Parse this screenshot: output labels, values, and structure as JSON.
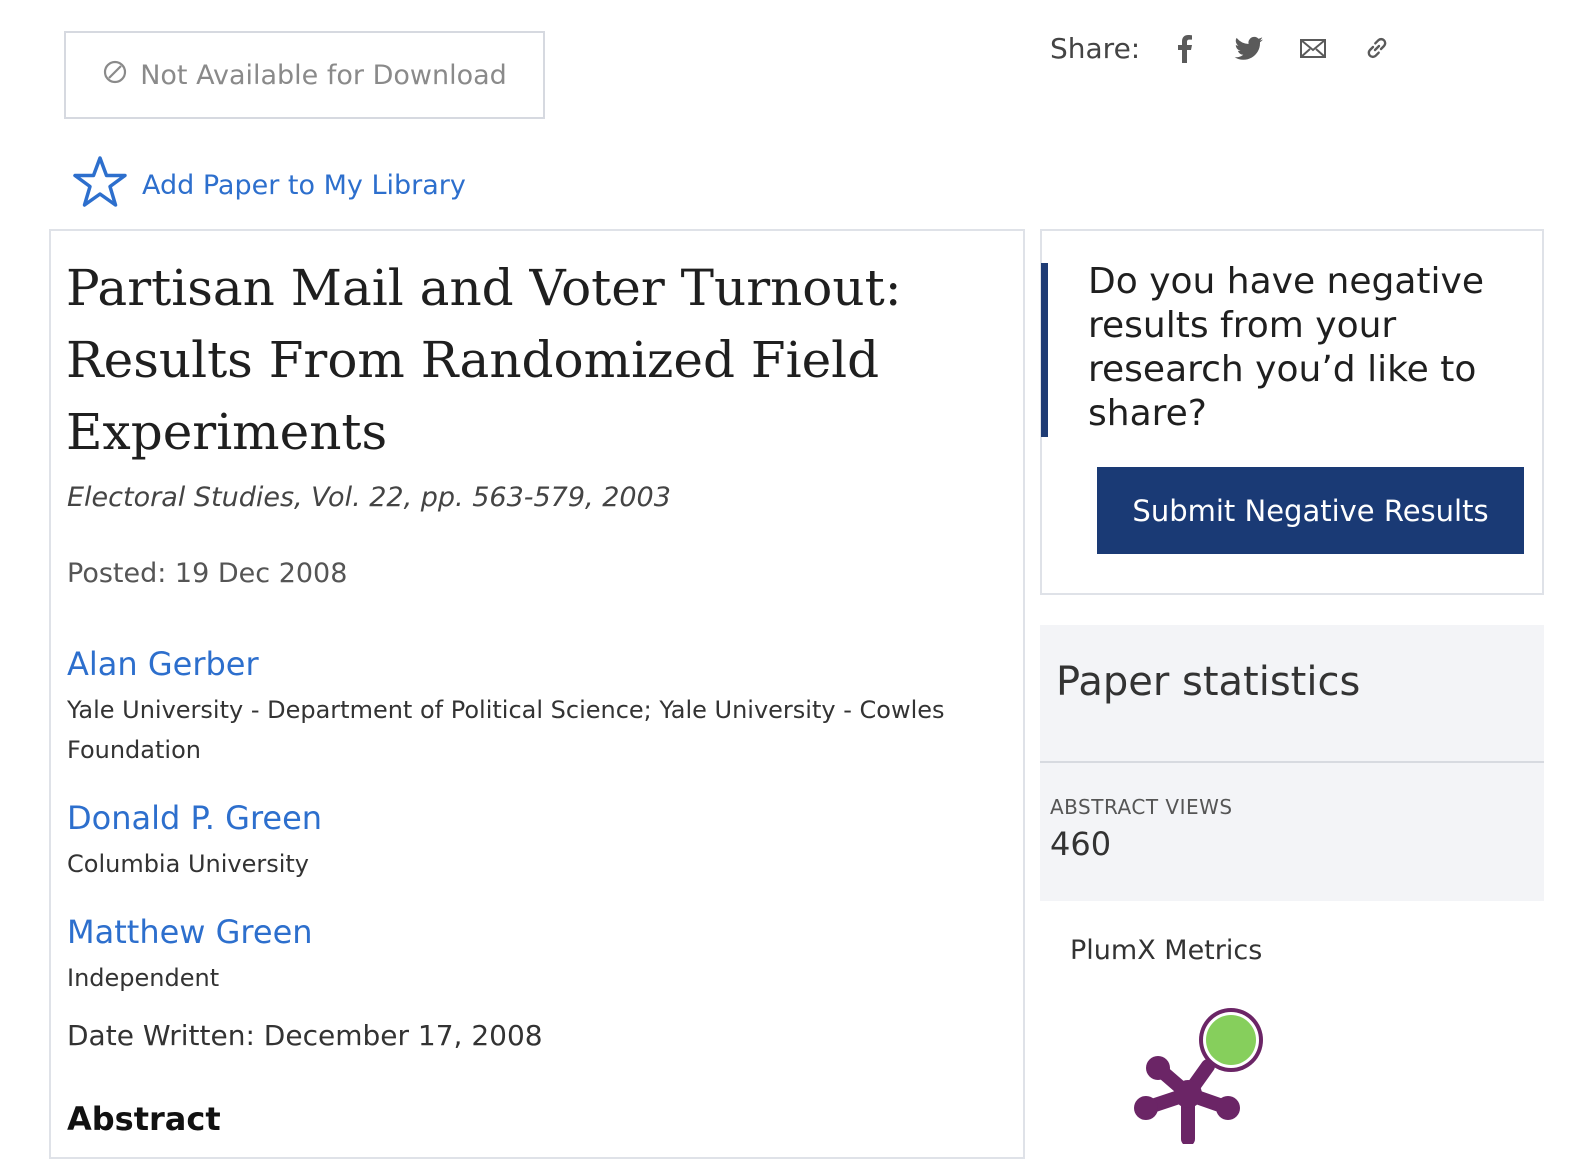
{
  "download": {
    "label": "Not Available for Download"
  },
  "share": {
    "label": "Share:",
    "icons": [
      "facebook-icon",
      "twitter-icon",
      "email-icon",
      "link-icon"
    ]
  },
  "library": {
    "label": "Add Paper to My Library"
  },
  "paper": {
    "title": "Partisan Mail and Voter Turnout: Results From Randomized Field Experiments",
    "citation": "Electoral Studies, Vol. 22, pp. 563-579, 2003",
    "posted": "Posted: 19 Dec 2008",
    "authors": [
      {
        "name": "Alan Gerber",
        "affiliation": "Yale University - Department of Political Science; Yale University - Cowles Foundation"
      },
      {
        "name": "Donald P. Green",
        "affiliation": "Columbia University"
      },
      {
        "name": "Matthew Green",
        "affiliation": "Independent"
      }
    ],
    "date_written": "Date Written: December 17, 2008",
    "abstract_heading": "Abstract"
  },
  "negative_results": {
    "question": "Do you have negative results from your research you’d like to share?",
    "button_label": "Submit Negative Results"
  },
  "statistics": {
    "title": "Paper statistics",
    "abstract_views_label": "ABSTRACT VIEWS",
    "abstract_views_value": "460"
  },
  "plumx": {
    "label": "PlumX Metrics"
  },
  "colors": {
    "link_blue": "#2d6fcd",
    "navy": "#1a3a75",
    "plumx_purple": "#6b2566",
    "plumx_green": "#86cf5c"
  }
}
